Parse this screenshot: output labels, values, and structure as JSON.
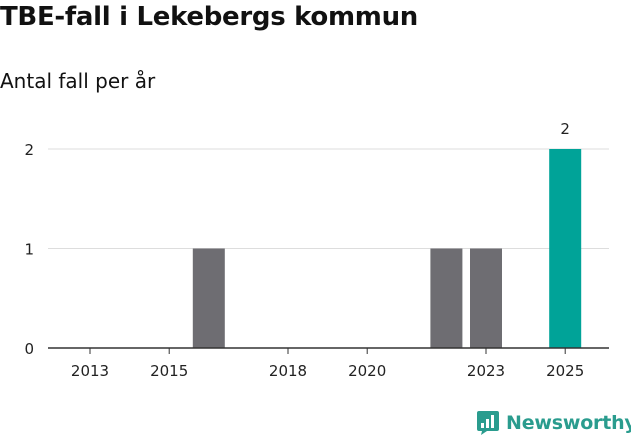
{
  "header": {
    "title": "TBE-fall i Lekebergs kommun",
    "subtitle": "Antal fall per år"
  },
  "brand": {
    "name": "Newsworthy",
    "logo_icon": "newsworthy-logo-icon",
    "color": "#2a9c8e"
  },
  "colors": {
    "bar": "#6e6d72",
    "highlight": "#00a398",
    "grid": "#dddddd",
    "axis": "#333333"
  },
  "chart_data": {
    "type": "bar",
    "title": "TBE-fall i Lekebergs kommun",
    "subtitle": "Antal fall per år",
    "xlabel": "",
    "ylabel": "",
    "categories": [
      2013,
      2014,
      2015,
      2016,
      2017,
      2018,
      2019,
      2020,
      2021,
      2022,
      2023,
      2024,
      2025
    ],
    "values": [
      0,
      0,
      0,
      1,
      0,
      0,
      0,
      0,
      0,
      1,
      1,
      0,
      2
    ],
    "highlight_category": 2025,
    "data_labels": [
      {
        "category": 2025,
        "label": "2"
      }
    ],
    "x_tick_labels": [
      "2013",
      "2015",
      "2018",
      "2020",
      "2023",
      "2025"
    ],
    "y_ticks": [
      0,
      1,
      2
    ],
    "ylim": [
      0,
      2
    ],
    "grid": true,
    "legend": "none"
  }
}
